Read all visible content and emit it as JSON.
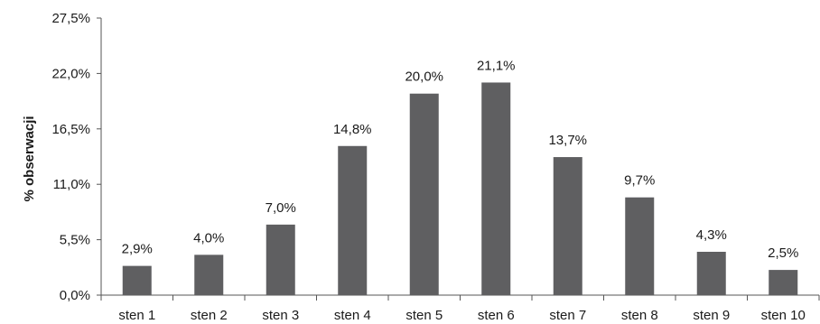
{
  "chart_data": {
    "type": "bar",
    "title": "",
    "xlabel": "",
    "ylabel": "% obserwacji",
    "ylim": [
      0,
      27.5
    ],
    "yticks": [
      0,
      5.5,
      11,
      16.5,
      22,
      27.5
    ],
    "ytick_labels": [
      "0,0%",
      "5,5%",
      "11,0%",
      "16,5%",
      "22,0%",
      "27,5%"
    ],
    "grid": false,
    "legend": "none",
    "categories": [
      "sten 1",
      "sten 2",
      "sten 3",
      "sten 4",
      "sten 5",
      "sten 6",
      "sten 7",
      "sten 8",
      "sten 9",
      "sten 10"
    ],
    "values": [
      2.9,
      4.0,
      7.0,
      14.8,
      20.0,
      21.1,
      13.7,
      9.7,
      4.3,
      2.5
    ],
    "value_labels": [
      "2,9%",
      "4,0%",
      "7,0%",
      "14,8%",
      "20,0%",
      "21,1%",
      "13,7%",
      "9,7%",
      "4,3%",
      "2,5%"
    ],
    "colors": {
      "bar": "#5f5f61",
      "axis": "#555555",
      "text": "#1a1a1a"
    }
  }
}
